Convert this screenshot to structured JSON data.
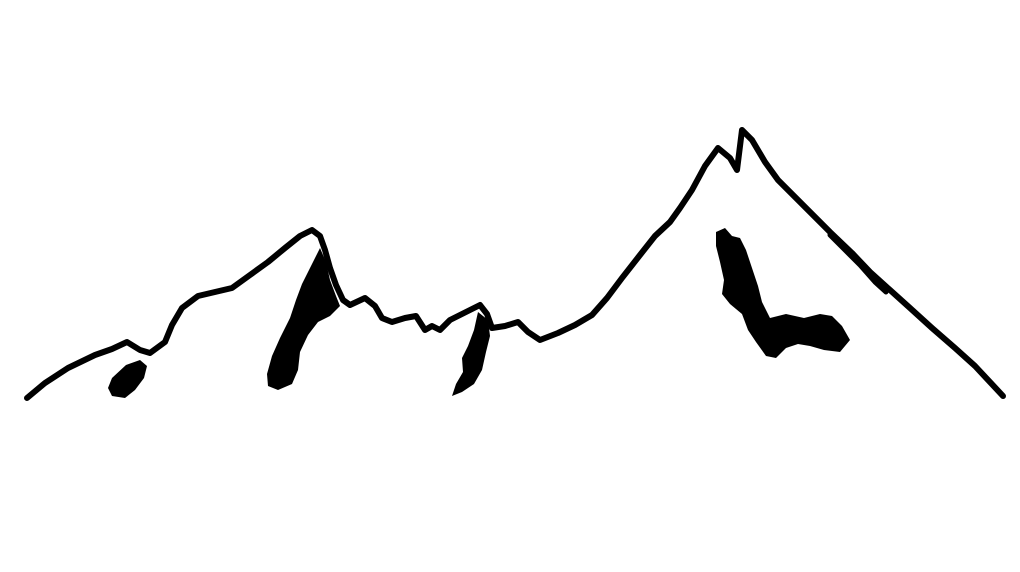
{
  "artwork": {
    "subject": "mountain-range-line-drawing",
    "colors": {
      "background": "#ffffff",
      "ink": "#000000"
    },
    "peak_count": 3
  }
}
